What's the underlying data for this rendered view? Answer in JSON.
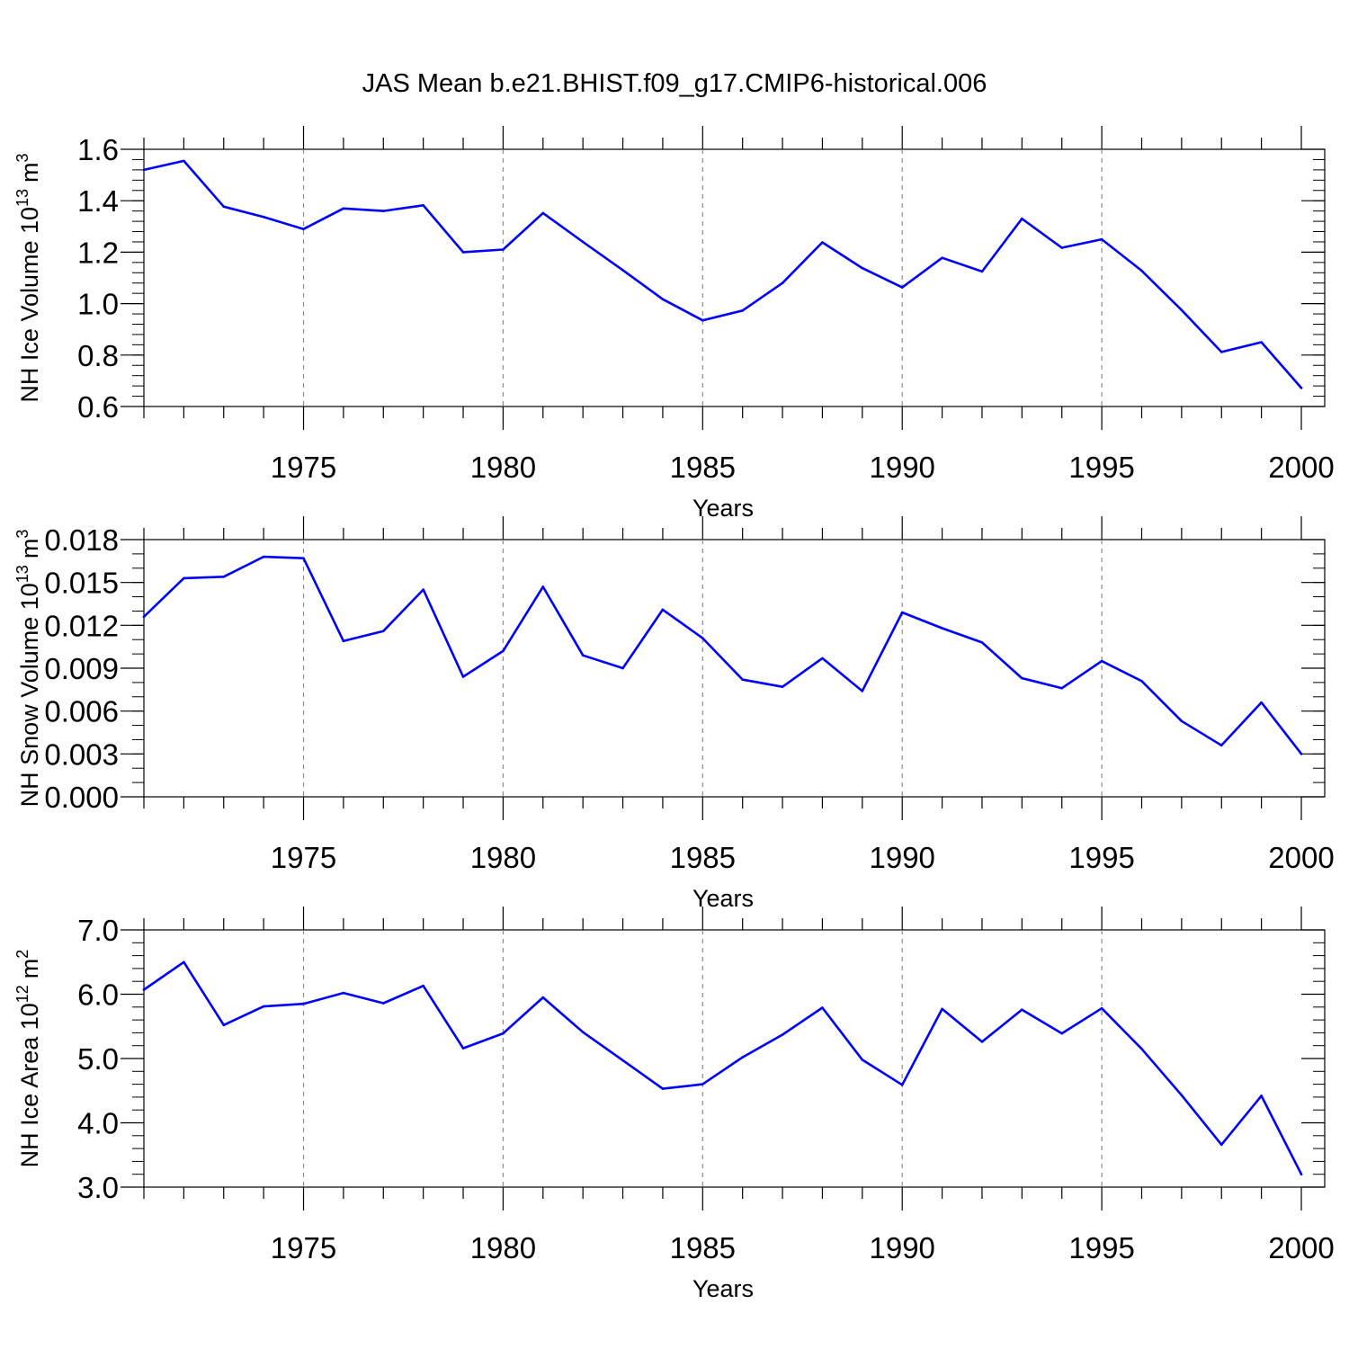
{
  "title": "JAS Mean b.e21.BHIST.f09_g17.CMIP6-historical.006",
  "colors": {
    "series": "#0000ff",
    "grid": "#8c8c8c",
    "axis": "#000000"
  },
  "chart_data": [
    {
      "id": "panel-ice-volume",
      "type": "line",
      "ylabel": "NH Ice Volume 10",
      "ylabel_exponent": "13",
      "ylabel_unit": "m",
      "ylabel_unit_exponent": "3",
      "xlabel": "Years",
      "xlim": [
        1971,
        2000
      ],
      "ylim": [
        0.6,
        1.6
      ],
      "x_ticks": [
        "1975",
        "1980",
        "1985",
        "1990",
        "1995",
        "2000"
      ],
      "y_ticks": [
        "0.6",
        "0.8",
        "1.0",
        "1.2",
        "1.4",
        "1.6"
      ],
      "y_minor_step": 0.04,
      "x": [
        1971,
        1972,
        1973,
        1974,
        1975,
        1976,
        1977,
        1978,
        1979,
        1980,
        1981,
        1982,
        1983,
        1984,
        1985,
        1986,
        1987,
        1988,
        1989,
        1990,
        1991,
        1992,
        1993,
        1994,
        1995,
        1996,
        1997,
        1998,
        1999,
        2000
      ],
      "values": [
        1.52,
        1.555,
        1.377,
        1.337,
        1.29,
        1.37,
        1.36,
        1.382,
        1.2,
        1.21,
        1.352,
        1.24,
        1.13,
        1.017,
        0.935,
        0.973,
        1.08,
        1.238,
        1.138,
        1.063,
        1.178,
        1.125,
        1.33,
        1.217,
        1.25,
        1.128,
        0.975,
        0.812,
        0.85,
        0.672
      ],
      "grid_x": [
        1975,
        1980,
        1985,
        1990,
        1995
      ]
    },
    {
      "id": "panel-snow-volume",
      "type": "line",
      "ylabel": "NH Snow Volume 10",
      "ylabel_exponent": "13",
      "ylabel_unit": "m",
      "ylabel_unit_exponent": "3",
      "xlabel": "Years",
      "xlim": [
        1971,
        2000
      ],
      "ylim": [
        0.0,
        0.018
      ],
      "x_ticks": [
        "1975",
        "1980",
        "1985",
        "1990",
        "1995",
        "2000"
      ],
      "y_ticks": [
        "0.000",
        "0.003",
        "0.006",
        "0.009",
        "0.012",
        "0.015",
        "0.018"
      ],
      "y_minor_step": 0.001,
      "x": [
        1971,
        1972,
        1973,
        1974,
        1975,
        1976,
        1977,
        1978,
        1979,
        1980,
        1981,
        1982,
        1983,
        1984,
        1985,
        1986,
        1987,
        1988,
        1989,
        1990,
        1991,
        1992,
        1993,
        1994,
        1995,
        1996,
        1997,
        1998,
        1999,
        2000
      ],
      "values": [
        0.0126,
        0.0153,
        0.0154,
        0.0168,
        0.0167,
        0.0109,
        0.0116,
        0.0145,
        0.0084,
        0.0102,
        0.0147,
        0.0099,
        0.009,
        0.0131,
        0.0111,
        0.0082,
        0.0077,
        0.0097,
        0.0074,
        0.0129,
        0.0118,
        0.0108,
        0.0083,
        0.0076,
        0.0095,
        0.0081,
        0.0053,
        0.0036,
        0.0066,
        0.003
      ],
      "grid_x": [
        1975,
        1980,
        1985,
        1990,
        1995
      ]
    },
    {
      "id": "panel-ice-area",
      "type": "line",
      "ylabel": "NH Ice Area 10",
      "ylabel_exponent": "12",
      "ylabel_unit": "m",
      "ylabel_unit_exponent": "2",
      "xlabel": "Years",
      "xlim": [
        1971,
        2000
      ],
      "ylim": [
        3.0,
        7.0
      ],
      "x_ticks": [
        "1975",
        "1980",
        "1985",
        "1990",
        "1995",
        "2000"
      ],
      "y_ticks": [
        "3.0",
        "4.0",
        "5.0",
        "6.0",
        "7.0"
      ],
      "y_minor_step": 0.2,
      "x": [
        1971,
        1972,
        1973,
        1974,
        1975,
        1976,
        1977,
        1978,
        1979,
        1980,
        1981,
        1982,
        1983,
        1984,
        1985,
        1986,
        1987,
        1988,
        1989,
        1990,
        1991,
        1992,
        1993,
        1994,
        1995,
        1996,
        1997,
        1998,
        1999,
        2000
      ],
      "values": [
        6.07,
        6.5,
        5.52,
        5.81,
        5.85,
        6.02,
        5.86,
        6.13,
        5.16,
        5.39,
        5.95,
        5.41,
        4.97,
        4.53,
        4.6,
        5.02,
        5.37,
        5.79,
        4.98,
        4.59,
        5.77,
        5.26,
        5.76,
        5.39,
        5.78,
        5.15,
        4.43,
        3.66,
        4.42,
        3.2
      ],
      "grid_x": [
        1975,
        1980,
        1985,
        1990,
        1995
      ]
    }
  ]
}
